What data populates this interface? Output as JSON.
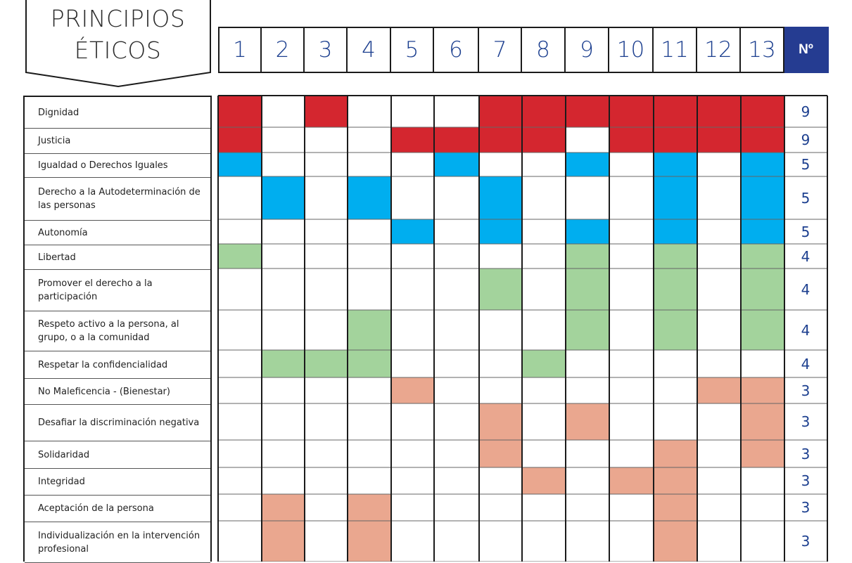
{
  "title": [
    "PRINCIPIOS",
    "ÉTICOS"
  ],
  "count_header": "Nº",
  "colors": {
    "red": "#d4262f",
    "blue": "#00aeef",
    "green": "#a3d39c",
    "salmon": "#eaa78f",
    "count_header_bg": "#253c91",
    "number_text": "#1c3f8f"
  },
  "chart_data": {
    "type": "table",
    "columns": [
      "1",
      "2",
      "3",
      "4",
      "5",
      "6",
      "7",
      "8",
      "9",
      "10",
      "11",
      "12",
      "13"
    ],
    "rows": [
      {
        "label": "Dignidad",
        "color": "red",
        "cols": [
          1,
          3,
          7,
          8,
          9,
          10,
          11,
          12,
          13
        ],
        "count": "9"
      },
      {
        "label": "Justicia",
        "color": "red",
        "cols": [
          1,
          5,
          6,
          7,
          8,
          10,
          11,
          12,
          13
        ],
        "count": "9"
      },
      {
        "label": "Igualdad o Derechos Iguales",
        "color": "blue",
        "cols": [
          1,
          6,
          9,
          11,
          13
        ],
        "count": "5"
      },
      {
        "label": "Derecho a la Autodeterminación de las personas",
        "color": "blue",
        "cols": [
          2,
          4,
          7,
          11,
          13
        ],
        "count": "5"
      },
      {
        "label": "Autonomía",
        "color": "blue",
        "cols": [
          5,
          7,
          9,
          11,
          13
        ],
        "count": "5"
      },
      {
        "label": "Libertad",
        "color": "green",
        "cols": [
          1,
          9,
          11,
          13
        ],
        "count": "4"
      },
      {
        "label": "Promover el derecho a la participación",
        "color": "green",
        "cols": [
          7,
          9,
          11,
          13
        ],
        "count": "4"
      },
      {
        "label": "Respeto activo a la persona, al grupo, o a la comunidad",
        "color": "green",
        "cols": [
          4,
          9,
          11,
          13
        ],
        "count": "4"
      },
      {
        "label": "Respetar la confidencialidad",
        "color": "green",
        "cols": [
          2,
          3,
          4,
          8
        ],
        "count": "4"
      },
      {
        "label": "No Maleficencia - (Bienestar)",
        "color": "salmon",
        "cols": [
          5,
          12,
          13
        ],
        "count": "3"
      },
      {
        "label": "Desafiar la discriminación negativa",
        "color": "salmon",
        "cols": [
          7,
          9,
          13
        ],
        "count": "3"
      },
      {
        "label": "Solidaridad",
        "color": "salmon",
        "cols": [
          7,
          11,
          13
        ],
        "count": "3"
      },
      {
        "label": "Integridad",
        "color": "salmon",
        "cols": [
          8,
          10,
          11
        ],
        "count": "3"
      },
      {
        "label": "Aceptación de la persona",
        "color": "salmon",
        "cols": [
          2,
          4,
          11
        ],
        "count": "3"
      },
      {
        "label": "Individualización en la intervención profesional",
        "color": "salmon",
        "cols": [
          2,
          4,
          11
        ],
        "count": "3"
      }
    ]
  }
}
